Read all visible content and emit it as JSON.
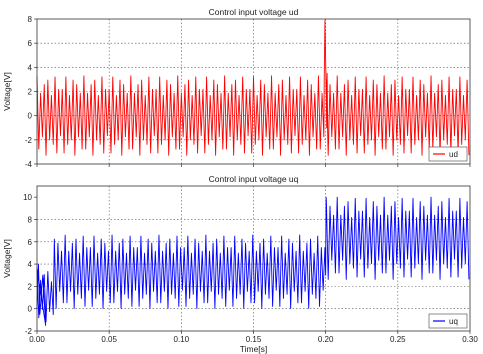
{
  "chart_data": [
    {
      "type": "line",
      "title": "Control input voltage ud",
      "xlabel": "",
      "ylabel": "Voltage[V]",
      "xlim": [
        0,
        0.3
      ],
      "ylim": [
        -4,
        8
      ],
      "xticks": [
        0.0,
        0.05,
        0.1,
        0.15,
        0.2,
        0.25,
        0.3
      ],
      "xtick_labels": [
        "",
        "",
        "",
        "",
        "",
        "",
        ""
      ],
      "yticks": [
        -4,
        -2,
        0,
        2,
        4,
        6,
        8
      ],
      "ytick_labels": [
        "-4",
        "-2",
        "0",
        "2",
        "4",
        "6",
        "8"
      ],
      "grid": true,
      "legend": "bottom-right",
      "series": [
        {
          "name": "ud",
          "color": "#ff0000",
          "segments": [
            {
              "t_start": 0.0,
              "t_end": 0.199,
              "center": 0.0,
              "amplitude": 3.3,
              "period": 0.0025
            },
            {
              "t_start": 0.2005,
              "t_end": 0.3,
              "center": 0.0,
              "amplitude": 3.3,
              "period": 0.0025
            }
          ],
          "spike": [
            [
              0.199,
              3.0
            ],
            [
              0.1995,
              7.9
            ],
            [
              0.2003,
              2.5
            ],
            [
              0.2007,
              -1.0
            ],
            [
              0.201,
              3.5
            ],
            [
              0.2015,
              -2.0
            ]
          ]
        }
      ]
    },
    {
      "type": "line",
      "title": "Control input voltage uq",
      "xlabel": "Time[s]",
      "ylabel": "Voltage[V]",
      "xlim": [
        0,
        0.3
      ],
      "ylim": [
        -2,
        11
      ],
      "xticks": [
        0.0,
        0.05,
        0.1,
        0.15,
        0.2,
        0.25,
        0.3
      ],
      "xtick_labels": [
        "0.00",
        "0.05",
        "0.10",
        "0.15",
        "0.20",
        "0.25",
        "0.30"
      ],
      "yticks": [
        -2,
        0,
        2,
        4,
        6,
        8,
        10
      ],
      "ytick_labels": [
        "-2",
        "0",
        "2",
        "4",
        "6",
        "8",
        "10"
      ],
      "grid": true,
      "legend": "bottom-right",
      "series": [
        {
          "name": "uq",
          "color": "#0000ff",
          "segments": [
            {
              "t_start": 0.0,
              "t_end": 0.012,
              "center": 1.2,
              "amplitude": 2.4,
              "period": 0.0025
            },
            {
              "t_start": 0.012,
              "t_end": 0.2,
              "center": 3.3,
              "amplitude": 3.3,
              "period": 0.0025
            },
            {
              "t_start": 0.2005,
              "t_end": 0.3,
              "center": 6.3,
              "amplitude": 3.7,
              "period": 0.0025
            }
          ],
          "spike": [
            [
              0.0,
              0.0
            ],
            [
              0.001,
              4.0
            ],
            [
              0.002,
              -0.5
            ],
            [
              0.004,
              3.0
            ],
            [
              0.006,
              -1.5
            ],
            [
              0.2,
              3.0
            ],
            [
              0.2003,
              10.0
            ]
          ]
        }
      ]
    }
  ]
}
